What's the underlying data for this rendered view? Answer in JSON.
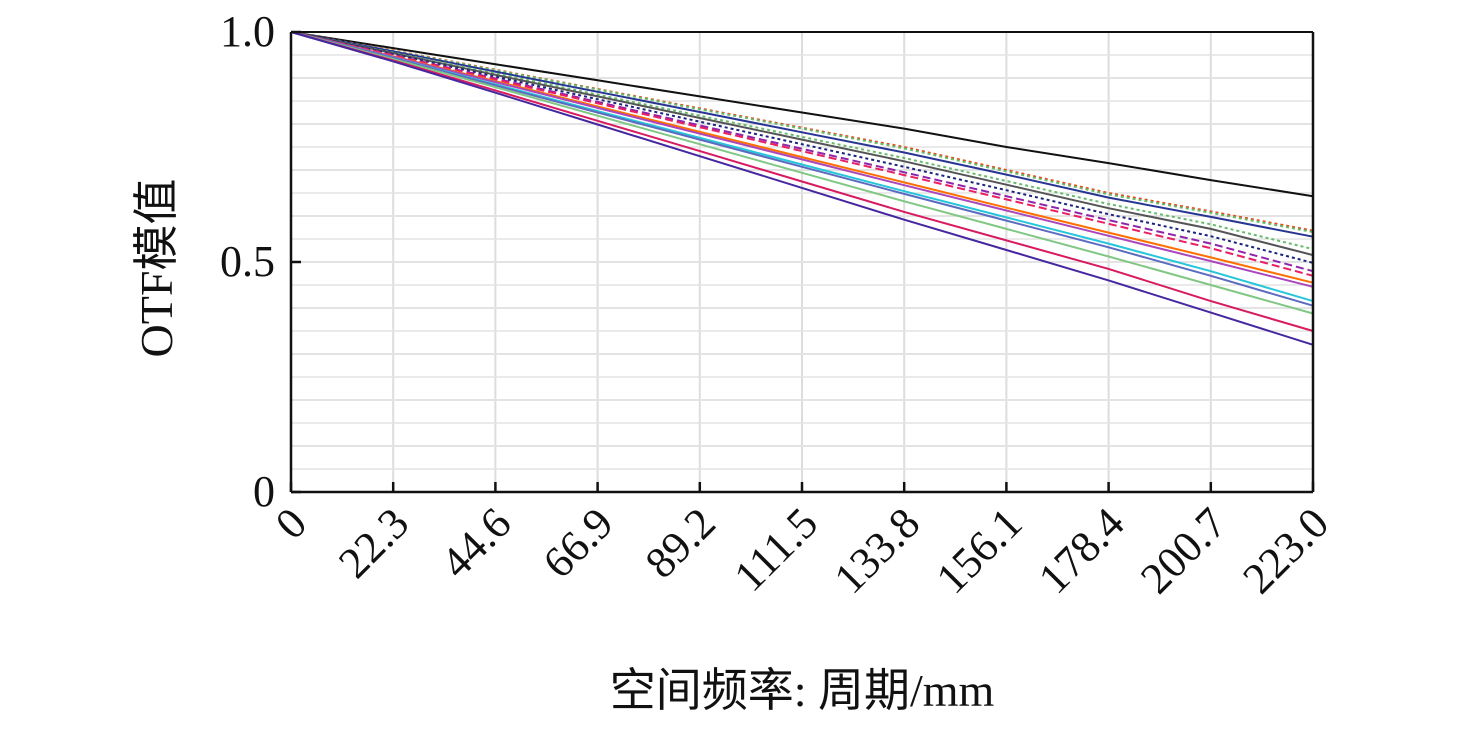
{
  "chart_data": {
    "type": "line",
    "title": "",
    "xlabel": "空间频率: 周期/mm",
    "ylabel": "OTF模值",
    "xlim": [
      0,
      223.0
    ],
    "ylim": [
      0,
      1.0
    ],
    "x_ticks": [
      "0",
      "22.3",
      "44.6",
      "66.9",
      "89.2",
      "111.5",
      "133.8",
      "156.1",
      "178.4",
      "200.7",
      "223.0"
    ],
    "y_ticks": [
      "0",
      "0.5",
      "1.0"
    ],
    "grid": true,
    "legend": "none",
    "x": [
      0,
      22.3,
      44.6,
      66.9,
      89.2,
      111.5,
      133.8,
      156.1,
      178.4,
      200.7,
      223.0
    ],
    "series": [
      {
        "color": "#111111",
        "dash": "solid",
        "values": [
          1.0,
          0.965,
          0.93,
          0.895,
          0.86,
          0.825,
          0.79,
          0.75,
          0.715,
          0.678,
          0.643
        ]
      },
      {
        "color": "#e64a19",
        "dash": "dotted",
        "values": [
          1.0,
          0.96,
          0.918,
          0.876,
          0.834,
          0.792,
          0.75,
          0.7,
          0.65,
          0.61,
          0.568
        ]
      },
      {
        "color": "#66bb6a",
        "dash": "dotted",
        "values": [
          1.0,
          0.959,
          0.917,
          0.875,
          0.832,
          0.79,
          0.747,
          0.697,
          0.647,
          0.607,
          0.565
        ]
      },
      {
        "color": "#283593",
        "dash": "solid",
        "values": [
          1.0,
          0.958,
          0.914,
          0.87,
          0.826,
          0.782,
          0.738,
          0.69,
          0.64,
          0.598,
          0.555
        ]
      },
      {
        "color": "#66bb6a",
        "dash": "dotted",
        "values": [
          1.0,
          0.955,
          0.91,
          0.864,
          0.818,
          0.772,
          0.726,
          0.676,
          0.626,
          0.582,
          0.528
        ]
      },
      {
        "color": "#555555",
        "dash": "solid",
        "values": [
          1.0,
          0.954,
          0.907,
          0.86,
          0.813,
          0.766,
          0.719,
          0.668,
          0.617,
          0.572,
          0.515
        ]
      },
      {
        "color": "#1a237e",
        "dash": "dotted",
        "values": [
          1.0,
          0.952,
          0.903,
          0.854,
          0.805,
          0.756,
          0.707,
          0.656,
          0.604,
          0.556,
          0.498
        ]
      },
      {
        "color": "#8e24aa",
        "dash": "dashed",
        "values": [
          1.0,
          0.95,
          0.899,
          0.848,
          0.797,
          0.746,
          0.695,
          0.643,
          0.591,
          0.54,
          0.48
        ]
      },
      {
        "color": "#e91e63",
        "dash": "dashed",
        "values": [
          1.0,
          0.949,
          0.897,
          0.845,
          0.793,
          0.741,
          0.689,
          0.636,
          0.583,
          0.53,
          0.47
        ]
      },
      {
        "color": "#ff6f00",
        "dash": "solid",
        "values": [
          1.0,
          0.947,
          0.893,
          0.838,
          0.783,
          0.728,
          0.673,
          0.618,
          0.564,
          0.51,
          0.455
        ]
      },
      {
        "color": "#ab47bc",
        "dash": "solid",
        "values": [
          1.0,
          0.946,
          0.891,
          0.835,
          0.779,
          0.723,
          0.667,
          0.612,
          0.557,
          0.502,
          0.446
        ]
      },
      {
        "color": "#26c6da",
        "dash": "solid",
        "values": [
          1.0,
          0.944,
          0.886,
          0.828,
          0.77,
          0.712,
          0.654,
          0.597,
          0.54,
          0.48,
          0.415
        ]
      },
      {
        "color": "#5c6bc0",
        "dash": "solid",
        "values": [
          1.0,
          0.943,
          0.884,
          0.825,
          0.766,
          0.707,
          0.648,
          0.59,
          0.532,
          0.47,
          0.405
        ]
      },
      {
        "color": "#81c784",
        "dash": "solid",
        "values": [
          1.0,
          0.941,
          0.88,
          0.818,
          0.756,
          0.694,
          0.632,
          0.572,
          0.512,
          0.45,
          0.388
        ]
      },
      {
        "color": "#d81b60",
        "dash": "solid",
        "values": [
          1.0,
          0.938,
          0.873,
          0.807,
          0.741,
          0.675,
          0.609,
          0.547,
          0.485,
          0.415,
          0.35
        ]
      },
      {
        "color": "#4527a0",
        "dash": "solid",
        "values": [
          1.0,
          0.936,
          0.868,
          0.799,
          0.73,
          0.661,
          0.592,
          0.526,
          0.46,
          0.39,
          0.32
        ]
      }
    ]
  }
}
